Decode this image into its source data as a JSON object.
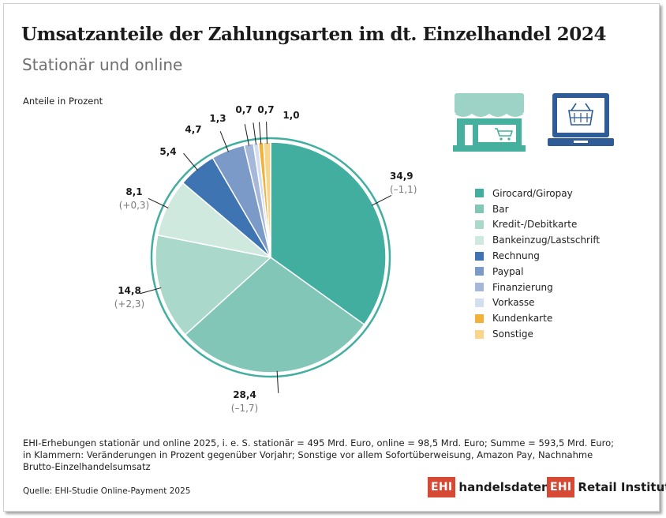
{
  "title": "Umsatzanteile der Zahlungsarten im dt. Einzelhandel 2024",
  "subtitle": "Stationär und online",
  "unit_label": "Anteile in Prozent",
  "chart_data": {
    "type": "pie",
    "title": "Umsatzanteile der Zahlungsarten im dt. Einzelhandel 2024",
    "subtitle": "Stationär und online",
    "unit": "Anteile in Prozent",
    "legend_position": "right",
    "slices": [
      {
        "name": "Girocard/Giropay",
        "value": 34.9,
        "label": "34,9",
        "change": "(–1,1)",
        "color": "#41ae9f"
      },
      {
        "name": "Bar",
        "value": 28.4,
        "label": "28,4",
        "change": "(–1,7)",
        "color": "#82c6b8"
      },
      {
        "name": "Kredit-/Debitkarte",
        "value": 14.8,
        "label": "14,8",
        "change": "(+2,3)",
        "color": "#aad8ca"
      },
      {
        "name": "Bankeinzug/Lastschrift",
        "value": 8.1,
        "label": "8,1",
        "change": "(+0,3)",
        "color": "#cfe9df"
      },
      {
        "name": "Rechnung",
        "value": 5.4,
        "label": "5,4",
        "change": "",
        "color": "#3f74b2"
      },
      {
        "name": "Paypal",
        "value": 4.7,
        "label": "4,7",
        "change": "",
        "color": "#7b9ac8"
      },
      {
        "name": "Finanzierung",
        "value": 1.3,
        "label": "1,3",
        "change": "",
        "color": "#a6b8da"
      },
      {
        "name": "Vorkasse",
        "value": 0.7,
        "label": "0,7",
        "change": "",
        "color": "#d3deef"
      },
      {
        "name": "Kundenkarte",
        "value": 0.7,
        "label": "0,7",
        "change": "",
        "color": "#f2b23a"
      },
      {
        "name": "Sonstige",
        "value": 1.0,
        "label": "1,0",
        "change": "",
        "color": "#f8d58a"
      }
    ]
  },
  "icons": {
    "store": "store-icon",
    "laptop": "laptop-shopping-basket-icon",
    "color": "#45b09e",
    "blue": "#2f5b96"
  },
  "ring_color": "#41ae9f",
  "notes": [
    "EHI-Erhebungen stationär und online 2025, i. e. S. stationär = 495 Mrd. Euro, online = 98,5 Mrd. Euro; Summe = 593,5 Mrd. Euro;",
    "in Klammern: Veränderungen in Prozent gegenüber Vorjahr; Sonstige vor allem Sofortüberweisung, Amazon Pay, Nachnahme",
    "Brutto-Einzelhandelsumsatz"
  ],
  "source": "Quelle: EHI-Studie Online-Payment 2025",
  "logos": {
    "brand_box": "EHI",
    "handelsdaten": "handelsdaten.de",
    "retail": "Retail Institute",
    "registered": "®",
    "brand_color": "#d64a35"
  }
}
